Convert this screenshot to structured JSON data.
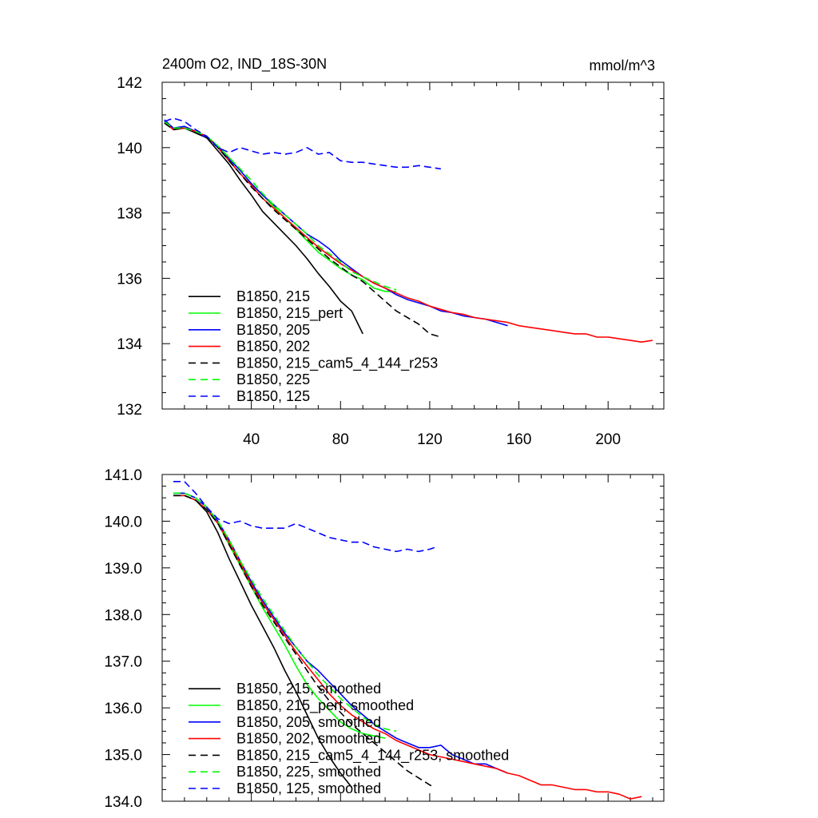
{
  "page": {
    "background": "#ffffff"
  },
  "chart_data": [
    {
      "type": "line",
      "title": "2400m O2, IND_18S-30N",
      "units_label": "mmol/m^3",
      "xlim": [
        0,
        225
      ],
      "ylim": [
        132,
        142
      ],
      "x_ticks": [
        40,
        80,
        120,
        160,
        200
      ],
      "x_ticklabels": [
        "40",
        "80",
        "120",
        "160",
        "200"
      ],
      "y_ticks": [
        132,
        134,
        136,
        138,
        140,
        142
      ],
      "y_ticklabels": [
        "132",
        "134",
        "136",
        "138",
        "140",
        "142"
      ],
      "grid": false,
      "legend_position": "bottom-left",
      "series": [
        {
          "name": "B1850, 215",
          "color": "#000000",
          "dash": "solid",
          "x": [
            1,
            5,
            10,
            15,
            20,
            25,
            30,
            35,
            40,
            45,
            50,
            55,
            60,
            65,
            70,
            75,
            80,
            85,
            90
          ],
          "y": [
            140.8,
            140.55,
            140.6,
            140.45,
            140.3,
            139.9,
            139.5,
            139.0,
            138.55,
            138.05,
            137.7,
            137.35,
            137.0,
            136.6,
            136.15,
            135.75,
            135.3,
            135.0,
            134.3
          ]
        },
        {
          "name": "B1850, 215_pert",
          "color": "#00ff00",
          "dash": "solid",
          "x": [
            1,
            5,
            10,
            15,
            20,
            25,
            30,
            35,
            40,
            45,
            50,
            55,
            60,
            65,
            70,
            75,
            80,
            85,
            90,
            95,
            100,
            105
          ],
          "y": [
            140.8,
            140.6,
            140.6,
            140.5,
            140.35,
            140.05,
            139.7,
            139.3,
            138.9,
            138.55,
            138.2,
            137.85,
            137.5,
            137.15,
            136.8,
            136.55,
            136.3,
            136.1,
            135.95,
            135.7,
            135.6,
            135.6
          ]
        },
        {
          "name": "B1850, 205",
          "color": "#0000ff",
          "dash": "solid",
          "x": [
            1,
            5,
            10,
            15,
            20,
            25,
            30,
            35,
            40,
            45,
            50,
            55,
            60,
            65,
            70,
            75,
            80,
            85,
            90,
            95,
            100,
            105,
            110,
            115,
            120,
            125,
            130,
            135,
            140,
            145,
            150,
            155
          ],
          "y": [
            140.85,
            140.6,
            140.65,
            140.5,
            140.3,
            140.05,
            139.65,
            139.3,
            138.9,
            138.55,
            138.25,
            137.95,
            137.65,
            137.35,
            137.15,
            136.9,
            136.55,
            136.3,
            136.05,
            135.85,
            135.7,
            135.5,
            135.35,
            135.25,
            135.15,
            135.0,
            134.95,
            134.85,
            134.8,
            134.75,
            134.65,
            134.55
          ]
        },
        {
          "name": "B1850, 202",
          "color": "#ff0000",
          "dash": "solid",
          "x": [
            1,
            5,
            10,
            15,
            20,
            25,
            30,
            35,
            40,
            45,
            50,
            55,
            60,
            65,
            70,
            75,
            80,
            85,
            90,
            95,
            100,
            105,
            110,
            115,
            120,
            125,
            130,
            135,
            140,
            145,
            150,
            155,
            160,
            165,
            170,
            175,
            180,
            185,
            190,
            195,
            200,
            205,
            210,
            215,
            220
          ],
          "y": [
            140.8,
            140.55,
            140.6,
            140.5,
            140.35,
            140.0,
            139.6,
            139.2,
            138.85,
            138.45,
            138.15,
            137.85,
            137.55,
            137.25,
            136.95,
            136.7,
            136.45,
            136.25,
            136.05,
            135.85,
            135.7,
            135.55,
            135.4,
            135.3,
            135.15,
            135.05,
            134.95,
            134.9,
            134.8,
            134.75,
            134.7,
            134.65,
            134.55,
            134.5,
            134.45,
            134.4,
            134.35,
            134.3,
            134.3,
            134.2,
            134.2,
            134.15,
            134.1,
            134.05,
            134.1
          ]
        },
        {
          "name": "B1850, 215_cam5_4_144_r253",
          "color": "#000000",
          "dash": "dashed",
          "x": [
            1,
            5,
            10,
            15,
            20,
            25,
            30,
            35,
            40,
            45,
            50,
            55,
            60,
            65,
            70,
            75,
            80,
            85,
            90,
            95,
            100,
            105,
            110,
            115,
            120,
            125
          ],
          "y": [
            140.75,
            140.55,
            140.6,
            140.45,
            140.3,
            140.0,
            139.6,
            139.2,
            138.8,
            138.45,
            138.1,
            137.8,
            137.5,
            137.2,
            136.9,
            136.6,
            136.35,
            136.1,
            135.9,
            135.6,
            135.3,
            135.0,
            134.8,
            134.6,
            134.3,
            134.2
          ]
        },
        {
          "name": "B1850, 225",
          "color": "#00ff00",
          "dash": "dashed",
          "x": [
            1,
            5,
            10,
            15,
            20,
            25,
            30,
            35,
            40,
            45,
            50,
            55,
            60,
            65,
            70,
            75,
            80,
            85,
            90,
            95,
            100,
            105
          ],
          "y": [
            140.8,
            140.6,
            140.6,
            140.5,
            140.35,
            140.05,
            139.7,
            139.35,
            139.0,
            138.6,
            138.25,
            137.95,
            137.65,
            137.35,
            137.0,
            136.75,
            136.5,
            136.2,
            136.05,
            135.9,
            135.75,
            135.65
          ]
        },
        {
          "name": "B1850, 125",
          "color": "#0000ff",
          "dash": "dashed",
          "x": [
            1,
            5,
            10,
            15,
            20,
            25,
            30,
            35,
            40,
            45,
            50,
            55,
            60,
            65,
            70,
            75,
            80,
            85,
            90,
            95,
            100,
            105,
            110,
            115,
            120,
            125
          ],
          "y": [
            140.8,
            140.9,
            140.8,
            140.55,
            140.35,
            140.0,
            139.85,
            140.0,
            139.9,
            139.8,
            139.85,
            139.8,
            139.85,
            140.0,
            139.8,
            139.85,
            139.6,
            139.55,
            139.55,
            139.5,
            139.45,
            139.4,
            139.4,
            139.45,
            139.4,
            139.35
          ]
        }
      ]
    },
    {
      "type": "line",
      "xlim": [
        0,
        225
      ],
      "ylim": [
        134.0,
        141.0
      ],
      "x_ticks": [
        40,
        80,
        120,
        160,
        200
      ],
      "y_ticks": [
        134.0,
        135.0,
        136.0,
        137.0,
        138.0,
        139.0,
        140.0,
        141.0
      ],
      "y_ticklabels": [
        "134.0",
        "135.0",
        "136.0",
        "137.0",
        "138.0",
        "139.0",
        "140.0",
        "141.0"
      ],
      "grid": false,
      "legend_position": "bottom-left",
      "series": [
        {
          "name": "B1850, 215, smoothed",
          "color": "#000000",
          "dash": "solid",
          "x": [
            5,
            10,
            15,
            20,
            25,
            30,
            35,
            40,
            45,
            50,
            55,
            60,
            65,
            70,
            75,
            80,
            85
          ],
          "y": [
            140.55,
            140.55,
            140.45,
            140.2,
            139.75,
            139.2,
            138.7,
            138.2,
            137.75,
            137.3,
            136.8,
            136.35,
            135.85,
            135.35,
            134.95,
            134.6,
            134.3
          ]
        },
        {
          "name": "B1850, 215_pert, smoothed",
          "color": "#00ff00",
          "dash": "solid",
          "x": [
            5,
            10,
            15,
            20,
            25,
            30,
            35,
            40,
            45,
            50,
            55,
            60,
            65,
            70,
            75,
            80,
            85,
            90,
            95,
            100
          ],
          "y": [
            140.6,
            140.6,
            140.5,
            140.3,
            139.95,
            139.5,
            139.05,
            138.6,
            138.15,
            137.75,
            137.35,
            136.9,
            136.5,
            136.2,
            135.95,
            135.7,
            135.55,
            135.45,
            135.4,
            135.35
          ]
        },
        {
          "name": "B1850, 205, smoothed",
          "color": "#0000ff",
          "dash": "solid",
          "x": [
            5,
            10,
            15,
            20,
            25,
            30,
            35,
            40,
            45,
            50,
            55,
            60,
            65,
            70,
            75,
            80,
            85,
            90,
            95,
            100,
            105,
            110,
            115,
            120,
            125,
            130,
            135,
            140,
            145,
            150,
            155
          ],
          "y": [
            140.6,
            140.6,
            140.5,
            140.3,
            140.0,
            139.6,
            139.15,
            138.7,
            138.3,
            137.95,
            137.6,
            137.3,
            137.0,
            136.8,
            136.55,
            136.3,
            136.05,
            135.85,
            135.65,
            135.5,
            135.35,
            135.25,
            135.15,
            135.15,
            135.2,
            135.0,
            134.9,
            134.8,
            134.8,
            134.7,
            134.6
          ]
        },
        {
          "name": "B1850, 202, smoothed",
          "color": "#ff0000",
          "dash": "solid",
          "x": [
            5,
            10,
            15,
            20,
            25,
            30,
            35,
            40,
            45,
            50,
            55,
            60,
            65,
            70,
            75,
            80,
            85,
            90,
            95,
            100,
            105,
            110,
            115,
            120,
            125,
            130,
            135,
            140,
            145,
            150,
            155,
            160,
            165,
            170,
            175,
            180,
            185,
            190,
            195,
            200,
            205,
            210,
            215
          ],
          "y": [
            140.55,
            140.55,
            140.45,
            140.25,
            139.95,
            139.55,
            139.1,
            138.65,
            138.25,
            137.9,
            137.55,
            137.2,
            136.9,
            136.6,
            136.3,
            136.05,
            135.85,
            135.7,
            135.55,
            135.45,
            135.3,
            135.2,
            135.1,
            135.0,
            134.95,
            134.9,
            134.85,
            134.8,
            134.75,
            134.7,
            134.6,
            134.55,
            134.45,
            134.35,
            134.35,
            134.3,
            134.25,
            134.25,
            134.2,
            134.2,
            134.15,
            134.05,
            134.1
          ]
        },
        {
          "name": "B1850, 215_cam5_4_144_r253, smoothed",
          "color": "#000000",
          "dash": "dashed",
          "x": [
            5,
            10,
            15,
            20,
            25,
            30,
            35,
            40,
            45,
            50,
            55,
            60,
            65,
            70,
            75,
            80,
            85,
            90,
            95,
            100,
            105,
            110,
            115,
            120,
            122
          ],
          "y": [
            140.55,
            140.55,
            140.45,
            140.25,
            139.95,
            139.5,
            139.05,
            138.6,
            138.2,
            137.85,
            137.5,
            137.15,
            136.8,
            136.45,
            136.15,
            135.9,
            135.65,
            135.45,
            135.25,
            135.05,
            134.85,
            134.65,
            134.5,
            134.35,
            134.3
          ]
        },
        {
          "name": "B1850, 225, smoothed",
          "color": "#00ff00",
          "dash": "dashed",
          "x": [
            5,
            10,
            15,
            20,
            25,
            30,
            35,
            40,
            45,
            50,
            55,
            60,
            65,
            70,
            75,
            80,
            85,
            90,
            95,
            100,
            105
          ],
          "y": [
            140.6,
            140.6,
            140.5,
            140.3,
            140.0,
            139.6,
            139.15,
            138.75,
            138.35,
            138.0,
            137.65,
            137.3,
            137.0,
            136.7,
            136.45,
            136.2,
            136.0,
            135.8,
            135.65,
            135.55,
            135.5
          ]
        },
        {
          "name": "B1850, 125, smoothed",
          "color": "#0000ff",
          "dash": "dashed",
          "x": [
            5,
            10,
            15,
            20,
            25,
            30,
            35,
            40,
            45,
            50,
            55,
            60,
            65,
            70,
            75,
            80,
            85,
            90,
            95,
            100,
            105,
            110,
            115,
            120,
            123
          ],
          "y": [
            140.85,
            140.85,
            140.6,
            140.3,
            140.05,
            139.95,
            140.0,
            139.9,
            139.85,
            139.85,
            139.85,
            139.95,
            139.85,
            139.75,
            139.65,
            139.6,
            139.55,
            139.55,
            139.45,
            139.4,
            139.35,
            139.4,
            139.35,
            139.4,
            139.45
          ]
        }
      ]
    }
  ]
}
